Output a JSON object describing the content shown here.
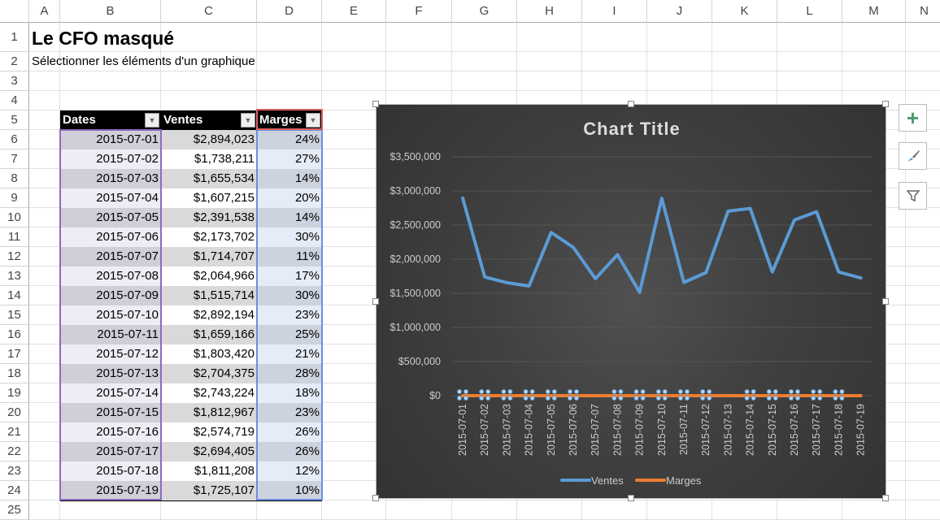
{
  "columns": [
    "A",
    "B",
    "C",
    "D",
    "E",
    "F",
    "G",
    "H",
    "I",
    "J",
    "K",
    "L",
    "M",
    "N"
  ],
  "title": "Le CFO masqué",
  "subtitle": "Sélectionner les éléments d'un graphique",
  "table": {
    "headers": [
      "Dates",
      "Ventes",
      "Marges"
    ],
    "rows": [
      [
        "2015-07-01",
        "$2,894,023",
        "24%"
      ],
      [
        "2015-07-02",
        "$1,738,211",
        "27%"
      ],
      [
        "2015-07-03",
        "$1,655,534",
        "14%"
      ],
      [
        "2015-07-04",
        "$1,607,215",
        "20%"
      ],
      [
        "2015-07-05",
        "$2,391,538",
        "14%"
      ],
      [
        "2015-07-06",
        "$2,173,702",
        "30%"
      ],
      [
        "2015-07-07",
        "$1,714,707",
        "11%"
      ],
      [
        "2015-07-08",
        "$2,064,966",
        "17%"
      ],
      [
        "2015-07-09",
        "$1,515,714",
        "30%"
      ],
      [
        "2015-07-10",
        "$2,892,194",
        "23%"
      ],
      [
        "2015-07-11",
        "$1,659,166",
        "25%"
      ],
      [
        "2015-07-12",
        "$1,803,420",
        "21%"
      ],
      [
        "2015-07-13",
        "$2,704,375",
        "28%"
      ],
      [
        "2015-07-14",
        "$2,743,224",
        "18%"
      ],
      [
        "2015-07-15",
        "$1,812,967",
        "23%"
      ],
      [
        "2015-07-16",
        "$2,574,719",
        "26%"
      ],
      [
        "2015-07-17",
        "$2,694,405",
        "26%"
      ],
      [
        "2015-07-18",
        "$1,811,208",
        "12%"
      ],
      [
        "2015-07-19",
        "$1,725,107",
        "10%"
      ]
    ]
  },
  "chart_buttons": [
    {
      "icon": "plus-icon"
    },
    {
      "icon": "brush-icon"
    },
    {
      "icon": "filter-icon"
    }
  ],
  "chart_data": {
    "type": "line",
    "title": "Chart Title",
    "categories": [
      "2015-07-01",
      "2015-07-02",
      "2015-07-03",
      "2015-07-04",
      "2015-07-05",
      "2015-07-06",
      "2015-07-07",
      "2015-07-08",
      "2015-07-09",
      "2015-07-10",
      "2015-07-11",
      "2015-07-12",
      "2015-07-13",
      "2015-07-14",
      "2015-07-15",
      "2015-07-16",
      "2015-07-17",
      "2015-07-18",
      "2015-07-19"
    ],
    "series": [
      {
        "name": "Ventes",
        "color": "#5b9bd5",
        "values": [
          2894023,
          1738211,
          1655534,
          1607215,
          2391538,
          2173702,
          1714707,
          2064966,
          1515714,
          2892194,
          1659166,
          1803420,
          2704375,
          2743224,
          1812967,
          2574719,
          2694405,
          1811208,
          1725107
        ]
      },
      {
        "name": "Marges",
        "color": "#ed7d31",
        "values": [
          0.24,
          0.27,
          0.14,
          0.2,
          0.14,
          0.3,
          0.11,
          0.17,
          0.3,
          0.23,
          0.25,
          0.21,
          0.28,
          0.18,
          0.23,
          0.26,
          0.26,
          0.12,
          0.1
        ]
      }
    ],
    "yticks": [
      "$0",
      "$500,000",
      "$1,000,000",
      "$1,500,000",
      "$2,000,000",
      "$2,500,000",
      "$3,000,000",
      "$3,500,000"
    ],
    "ylim": [
      0,
      3500000
    ],
    "grid": true,
    "legend": "bottom"
  }
}
